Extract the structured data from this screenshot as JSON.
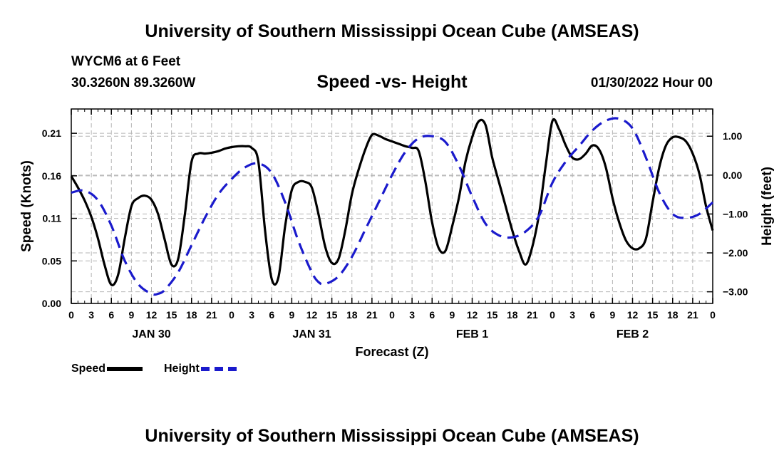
{
  "header": {
    "title": "University of Southern Mississippi Ocean Cube (AMSEAS)",
    "station": "WYCM6 at 6 Feet",
    "coords": "30.3260N  89.3260W",
    "chart_title": "Speed -vs- Height",
    "date": "01/30/2022 Hour 00"
  },
  "footer": {
    "title": "University of Southern Mississippi Ocean Cube (AMSEAS)"
  },
  "legend": {
    "speed_label": "Speed",
    "height_label": "Height"
  },
  "colors": {
    "speed": "#000000",
    "height": "#1a1acc",
    "grid": "#b5b5b5"
  },
  "chart_data": {
    "type": "line",
    "title": "Speed -vs- Height",
    "xlabel": "Forecast (Z)",
    "ylabel_left": "Speed (Knots)",
    "ylabel_right": "Height (feet)",
    "x_range": [
      0,
      96
    ],
    "x_ticks": [
      0,
      3,
      6,
      9,
      12,
      15,
      18,
      21,
      24,
      27,
      30,
      33,
      36,
      39,
      42,
      45,
      48,
      51,
      54,
      57,
      60,
      63,
      66,
      69,
      72,
      75,
      78,
      81,
      84,
      87,
      90,
      93,
      96
    ],
    "x_tick_labels": [
      "0",
      "3",
      "6",
      "9",
      "12",
      "15",
      "18",
      "21",
      "0",
      "3",
      "6",
      "9",
      "12",
      "15",
      "18",
      "21",
      "0",
      "3",
      "6",
      "9",
      "12",
      "15",
      "18",
      "21",
      "0",
      "3",
      "6",
      "9",
      "12",
      "15",
      "18",
      "21",
      "0"
    ],
    "day_labels": [
      {
        "hour": 12,
        "label": "JAN 30"
      },
      {
        "hour": 36,
        "label": "JAN 31"
      },
      {
        "hour": 60,
        "label": "FEB 1"
      },
      {
        "hour": 84,
        "label": "FEB 2"
      }
    ],
    "left_axis": {
      "ylim": [
        0,
        0.24
      ],
      "ticks": [
        0,
        0.0525,
        0.105,
        0.1575,
        0.21
      ],
      "tick_labels": [
        "0.00",
        "0.05",
        "0.11",
        "0.16",
        "0.21"
      ]
    },
    "right_axis": {
      "ylim": [
        -3.3,
        1.7
      ],
      "ticks": [
        -3,
        -2,
        -1,
        0,
        1
      ],
      "tick_labels": [
        "−3.00",
        "−2.00",
        "−1.00",
        "0.00",
        "1.00"
      ]
    },
    "grid": true,
    "series": [
      {
        "name": "Speed",
        "axis": "left",
        "style": "solid",
        "x": [
          0,
          1,
          2,
          3,
          4,
          5,
          6,
          7,
          8,
          9,
          10,
          11,
          12,
          13,
          14,
          15,
          16,
          17,
          18,
          19,
          20,
          21,
          22,
          23,
          24,
          25,
          26,
          27,
          28,
          29,
          30,
          31,
          32,
          33,
          34,
          35,
          36,
          37,
          38,
          39,
          40,
          41,
          42,
          43,
          44,
          45,
          46,
          47,
          48,
          49,
          50,
          51,
          52,
          53,
          54,
          55,
          56,
          57,
          58,
          59,
          60,
          61,
          62,
          63,
          64,
          65,
          66,
          67,
          68,
          69,
          70,
          71,
          72,
          73,
          74,
          75,
          76,
          77,
          78,
          79,
          80,
          81,
          82,
          83,
          84,
          85,
          86,
          87,
          88,
          89,
          90,
          91,
          92,
          93,
          94,
          95,
          96
        ],
        "values": [
          0.157,
          0.143,
          0.127,
          0.107,
          0.08,
          0.047,
          0.023,
          0.035,
          0.08,
          0.12,
          0.13,
          0.133,
          0.128,
          0.11,
          0.078,
          0.048,
          0.055,
          0.11,
          0.175,
          0.185,
          0.185,
          0.186,
          0.188,
          0.191,
          0.193,
          0.194,
          0.194,
          0.192,
          0.175,
          0.09,
          0.03,
          0.032,
          0.095,
          0.14,
          0.15,
          0.15,
          0.143,
          0.11,
          0.07,
          0.05,
          0.055,
          0.09,
          0.135,
          0.165,
          0.19,
          0.208,
          0.207,
          0.203,
          0.2,
          0.197,
          0.194,
          0.192,
          0.188,
          0.15,
          0.1,
          0.068,
          0.065,
          0.095,
          0.13,
          0.175,
          0.205,
          0.225,
          0.22,
          0.18,
          0.15,
          0.12,
          0.09,
          0.065,
          0.048,
          0.07,
          0.11,
          0.17,
          0.225,
          0.215,
          0.195,
          0.18,
          0.178,
          0.185,
          0.195,
          0.19,
          0.168,
          0.13,
          0.1,
          0.078,
          0.068,
          0.068,
          0.08,
          0.125,
          0.168,
          0.195,
          0.205,
          0.205,
          0.2,
          0.185,
          0.16,
          0.12,
          0.09
        ],
        "color": "#000000"
      },
      {
        "name": "Height",
        "axis": "right",
        "style": "dashed",
        "x": [
          0,
          2,
          4,
          6,
          8,
          10,
          12,
          13,
          14,
          16,
          18,
          20,
          22,
          24,
          26,
          28,
          30,
          32,
          34,
          36,
          37,
          38,
          40,
          42,
          44,
          46,
          48,
          50,
          52,
          54,
          56,
          58,
          60,
          62,
          64,
          66,
          68,
          70,
          72,
          74,
          76,
          78,
          80,
          82,
          84,
          86,
          88,
          90,
          92,
          94,
          96
        ],
        "values": [
          -0.45,
          -0.4,
          -0.65,
          -1.3,
          -2.2,
          -2.8,
          -3.05,
          -3.05,
          -2.95,
          -2.5,
          -1.8,
          -1.1,
          -0.5,
          -0.1,
          0.2,
          0.3,
          0.05,
          -0.7,
          -1.7,
          -2.5,
          -2.75,
          -2.8,
          -2.6,
          -2.1,
          -1.4,
          -0.7,
          0.0,
          0.6,
          0.95,
          1.0,
          0.85,
          0.25,
          -0.55,
          -1.25,
          -1.55,
          -1.6,
          -1.45,
          -1.05,
          -0.2,
          0.35,
          0.75,
          1.15,
          1.4,
          1.45,
          1.2,
          0.45,
          -0.45,
          -1.0,
          -1.1,
          -1.0,
          -0.7
        ],
        "color": "#1a1acc"
      }
    ]
  }
}
